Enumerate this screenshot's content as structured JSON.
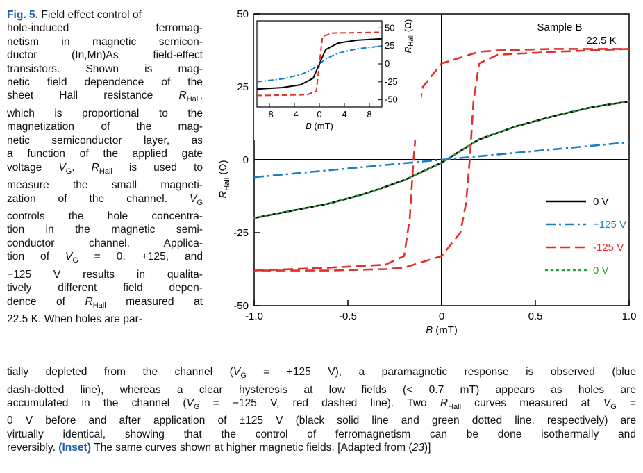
{
  "caption": {
    "label": "Fig. 5.",
    "lines_left": [
      "hole-induced ferromag-",
      "netism in magnetic semicon-",
      "ductor (In,Mn)As field-effect",
      "transistors. Shown is mag-",
      "netic field dependence of the",
      "sheet Hall resistance R_Hall,",
      "which is proportional to the",
      "magnetization of the mag-",
      "netic semiconductor layer, as",
      "a function of the applied gate",
      "voltage V_G. R_Hall is used to",
      "measure the small magneti-",
      "zation of the channel. V_G",
      "controls the hole concentra-",
      "tion in the magnetic semi-",
      "conductor channel. Applica-",
      "tion of V_G = 0, +125, and",
      "−125 V results in qualita-",
      "tively different field depen-",
      "dence of R_Hall measured at",
      "22.5 K. When holes are par-"
    ],
    "first_line_rest": "Field effect control of",
    "bottom_lines": [
      "tially depleted from the channel (V_G = +125 V), a paramagnetic response is observed (blue",
      "dash-dotted line), whereas a clear hysteresis at low fields (< 0.7 mT) appears as holes are",
      "accumulated in the channel (V_G = −125 V, red dashed line). Two R_Hall curves measured at V_G =",
      "0 V before and after application of ±125 V (black solid line and green dotted line, respectively) are",
      "virtually identical, showing that the control of ferromagnetism can be done isothermally and",
      "reversibly."
    ],
    "inset_label": "(Inset)",
    "inset_text": "The same curves shown at higher magnetic fields. [Adapted from (",
    "ref": "23",
    "ref_close": ")]"
  },
  "chart_data": [
    {
      "type": "line",
      "title": "",
      "sample_label": "Sample B",
      "temperature_label": "22.5 K",
      "xlabel": "B (mT)",
      "ylabel": "R_Hall (Ω)",
      "xlim": [
        -1.0,
        1.0
      ],
      "ylim": [
        -50,
        50
      ],
      "xticks": [
        "-1.0",
        "-0.5",
        "0",
        "0.5",
        "1.0"
      ],
      "yticks": [
        "50",
        "25",
        "0",
        "-25",
        "-50"
      ],
      "legend_position": "lower-right",
      "series": [
        {
          "name": "0 V",
          "color": "#000000",
          "style": "solid",
          "x": [
            -1.0,
            -0.8,
            -0.6,
            -0.4,
            -0.2,
            -0.1,
            0.0,
            0.1,
            0.2,
            0.4,
            0.6,
            0.8,
            1.0
          ],
          "y": [
            -20,
            -17.5,
            -15,
            -11.5,
            -7,
            -4,
            -1,
            3,
            7,
            11.5,
            15,
            18,
            20
          ]
        },
        {
          "name": "+125 V",
          "color": "#1a7fc1",
          "style": "dashdot",
          "x": [
            -1.0,
            -0.5,
            0.0,
            0.5,
            1.0
          ],
          "y": [
            -6,
            -3,
            0,
            3,
            6
          ]
        },
        {
          "name": "-125 V",
          "color": "#e0312b",
          "style": "dashed",
          "x": [
            -1.0,
            -0.6,
            -0.3,
            -0.2,
            -0.17,
            -0.15,
            -0.13,
            -0.1,
            0.0,
            0.1,
            0.15,
            0.2,
            0.3,
            0.6,
            1.0
          ],
          "y": [
            -38,
            -37,
            -36,
            -33,
            -20,
            0,
            15,
            25,
            33,
            35,
            36,
            37,
            37.5,
            38,
            38
          ]
        },
        {
          "name": "0 V",
          "color": "#2e9e3e",
          "style": "dotted",
          "x": [
            -1.0,
            -0.8,
            -0.6,
            -0.4,
            -0.2,
            -0.1,
            0.0,
            0.1,
            0.2,
            0.4,
            0.6,
            0.8,
            1.0
          ],
          "y": [
            -20,
            -17.5,
            -15,
            -11.5,
            -7,
            -4,
            -1,
            3,
            7,
            11.5,
            15,
            18,
            20
          ]
        }
      ]
    },
    {
      "type": "line",
      "title": "",
      "xlabel": "B (mT)",
      "ylabel": "R_Hall (Ω)",
      "xlim": [
        -10,
        10
      ],
      "ylim": [
        -60,
        60
      ],
      "xticks": [
        "-8",
        "-4",
        "0",
        "4",
        "8"
      ],
      "yticks": [
        "50",
        "25",
        "0",
        "-25",
        "-50"
      ],
      "series": [
        {
          "name": "-125 V",
          "color": "#e0312b",
          "style": "dashed",
          "x": [
            -10,
            -2,
            -0.5,
            0,
            0.5,
            2,
            10
          ],
          "y": [
            -44,
            -43,
            -38,
            0,
            38,
            43,
            44
          ]
        },
        {
          "name": "0 V",
          "color": "#000000",
          "style": "solid",
          "x": [
            -10,
            -6,
            -3,
            -1,
            0,
            1,
            3,
            6,
            10
          ],
          "y": [
            -35,
            -33,
            -29,
            -20,
            0,
            20,
            29,
            33,
            35
          ]
        },
        {
          "name": "+125 V",
          "color": "#1a7fc1",
          "style": "dashdot",
          "x": [
            -10,
            -6,
            -3,
            -1,
            0,
            1,
            3,
            6,
            10
          ],
          "y": [
            -25,
            -21,
            -15,
            -7,
            0,
            7,
            15,
            21,
            25
          ]
        }
      ]
    }
  ]
}
